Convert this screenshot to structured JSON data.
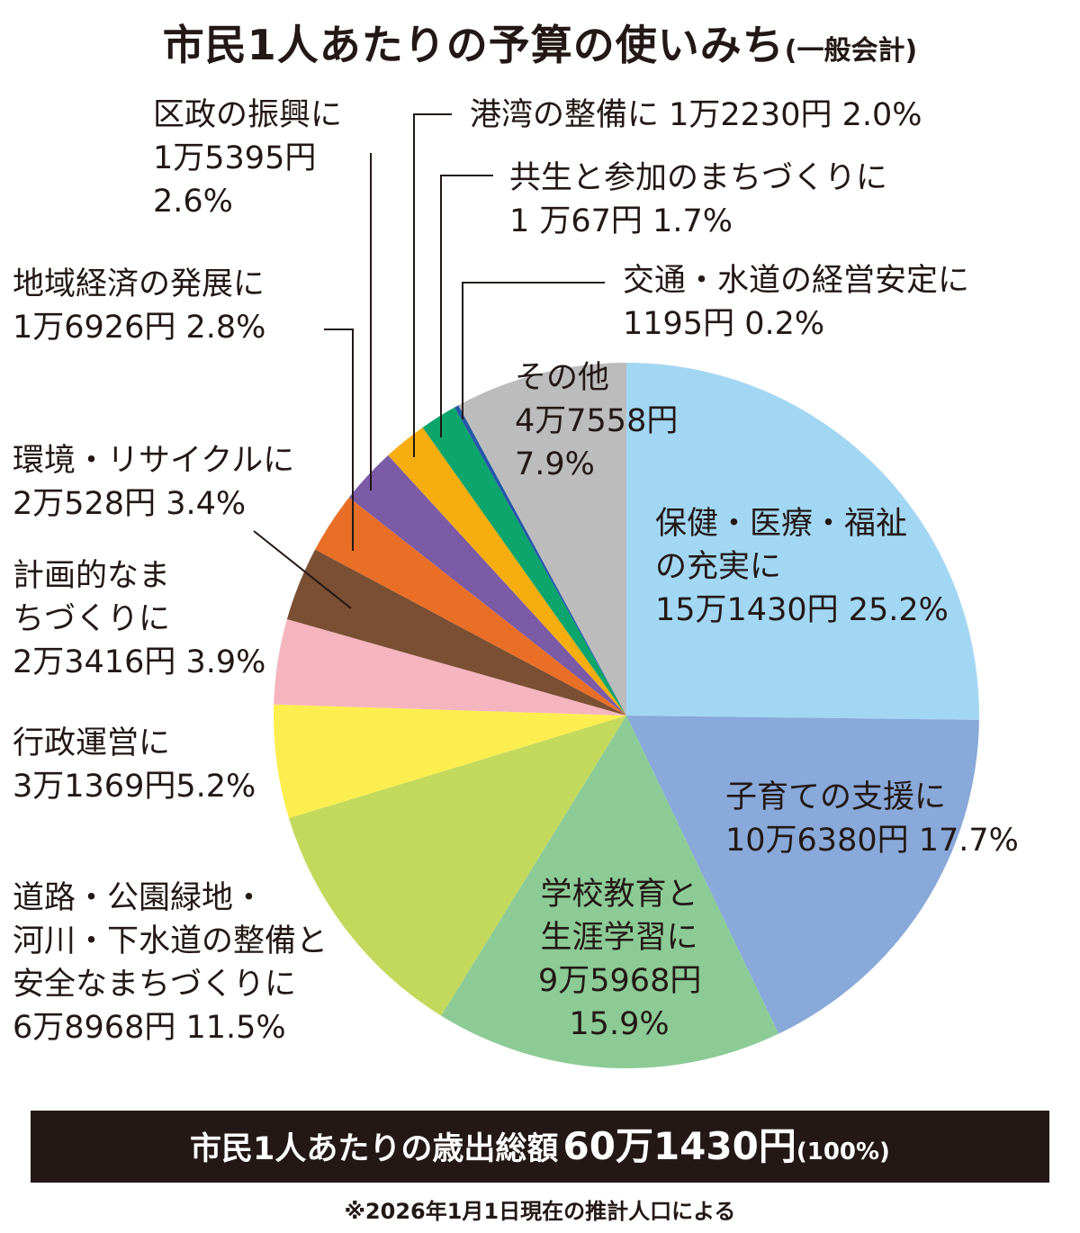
{
  "title": {
    "main": "市民1人あたりの予算の使いみち",
    "sub": "(一般会計)"
  },
  "chart_data": {
    "type": "pie",
    "start": "top",
    "direction": "clockwise",
    "slices": [
      {
        "label_lines": [
          "保健・医療・福祉",
          "の充実に",
          "15万1430円 25.2%"
        ],
        "amount": "15万1430円",
        "value": 25.2,
        "color": "#a2d7f4"
      },
      {
        "label_lines": [
          "子育ての支援に",
          "10万6380円 17.7%"
        ],
        "amount": "10万6380円",
        "value": 17.7,
        "color": "#88a9d9"
      },
      {
        "label_lines": [
          "学校教育と",
          "生涯学習に",
          "9万5968円",
          "15.9%"
        ],
        "amount": "9万5968円",
        "value": 15.9,
        "color": "#8ccb96"
      },
      {
        "label_lines": [
          "道路・公園緑地・",
          "河川・下水道の整備と",
          "安全なまちづくりに",
          "6万8968円 11.5%"
        ],
        "amount": "6万8968円",
        "value": 11.5,
        "color": "#c3d95c"
      },
      {
        "label_lines": [
          "行政運営に",
          "3万1369円5.2%"
        ],
        "amount": "3万1369円",
        "value": 5.2,
        "color": "#fdee4f"
      },
      {
        "label_lines": [
          "計画的なま",
          "ちづくりに",
          "2万3416円 3.9%"
        ],
        "amount": "2万3416円",
        "value": 3.9,
        "color": "#f4b5bf"
      },
      {
        "label_lines": [
          "環境・リサイクルに",
          "2万528円 3.4%"
        ],
        "amount": "2万528円",
        "value": 3.4,
        "color": "#7b4f33"
      },
      {
        "label_lines": [
          "地域経済の発展に",
          "1万6926円 2.8%"
        ],
        "amount": "1万6926円",
        "value": 2.8,
        "color": "#e96f27"
      },
      {
        "label_lines": [
          "区政の振興に",
          "1万5395円",
          "2.6%"
        ],
        "amount": "1万5395円",
        "value": 2.6,
        "color": "#7b5ba6"
      },
      {
        "label_lines": [
          "港湾の整備に 1万2230円 2.0%"
        ],
        "amount": "1万2230円",
        "value": 2.0,
        "color": "#f6ad0f"
      },
      {
        "label_lines": [
          "共生と参加のまちづくりに",
          " 1 万67円 1.7%"
        ],
        "amount": "1万67円",
        "value": 1.7,
        "color": "#0ca56b"
      },
      {
        "label_lines": [
          "交通・水道の経営安定に",
          "1195円 0.2%"
        ],
        "amount": "1195円",
        "value": 0.2,
        "color": "#2457a8"
      },
      {
        "label_lines": [
          "その他",
          "4万7558円",
          "7.9%"
        ],
        "amount": "4万7558円",
        "value": 7.9,
        "color": "#bcbcbc"
      }
    ]
  },
  "total": {
    "label": "市民1人あたりの歳出総額",
    "amount": "60万1430円",
    "percent": "(100%)"
  },
  "note": "※2026年1月1日現在の推計人口による"
}
